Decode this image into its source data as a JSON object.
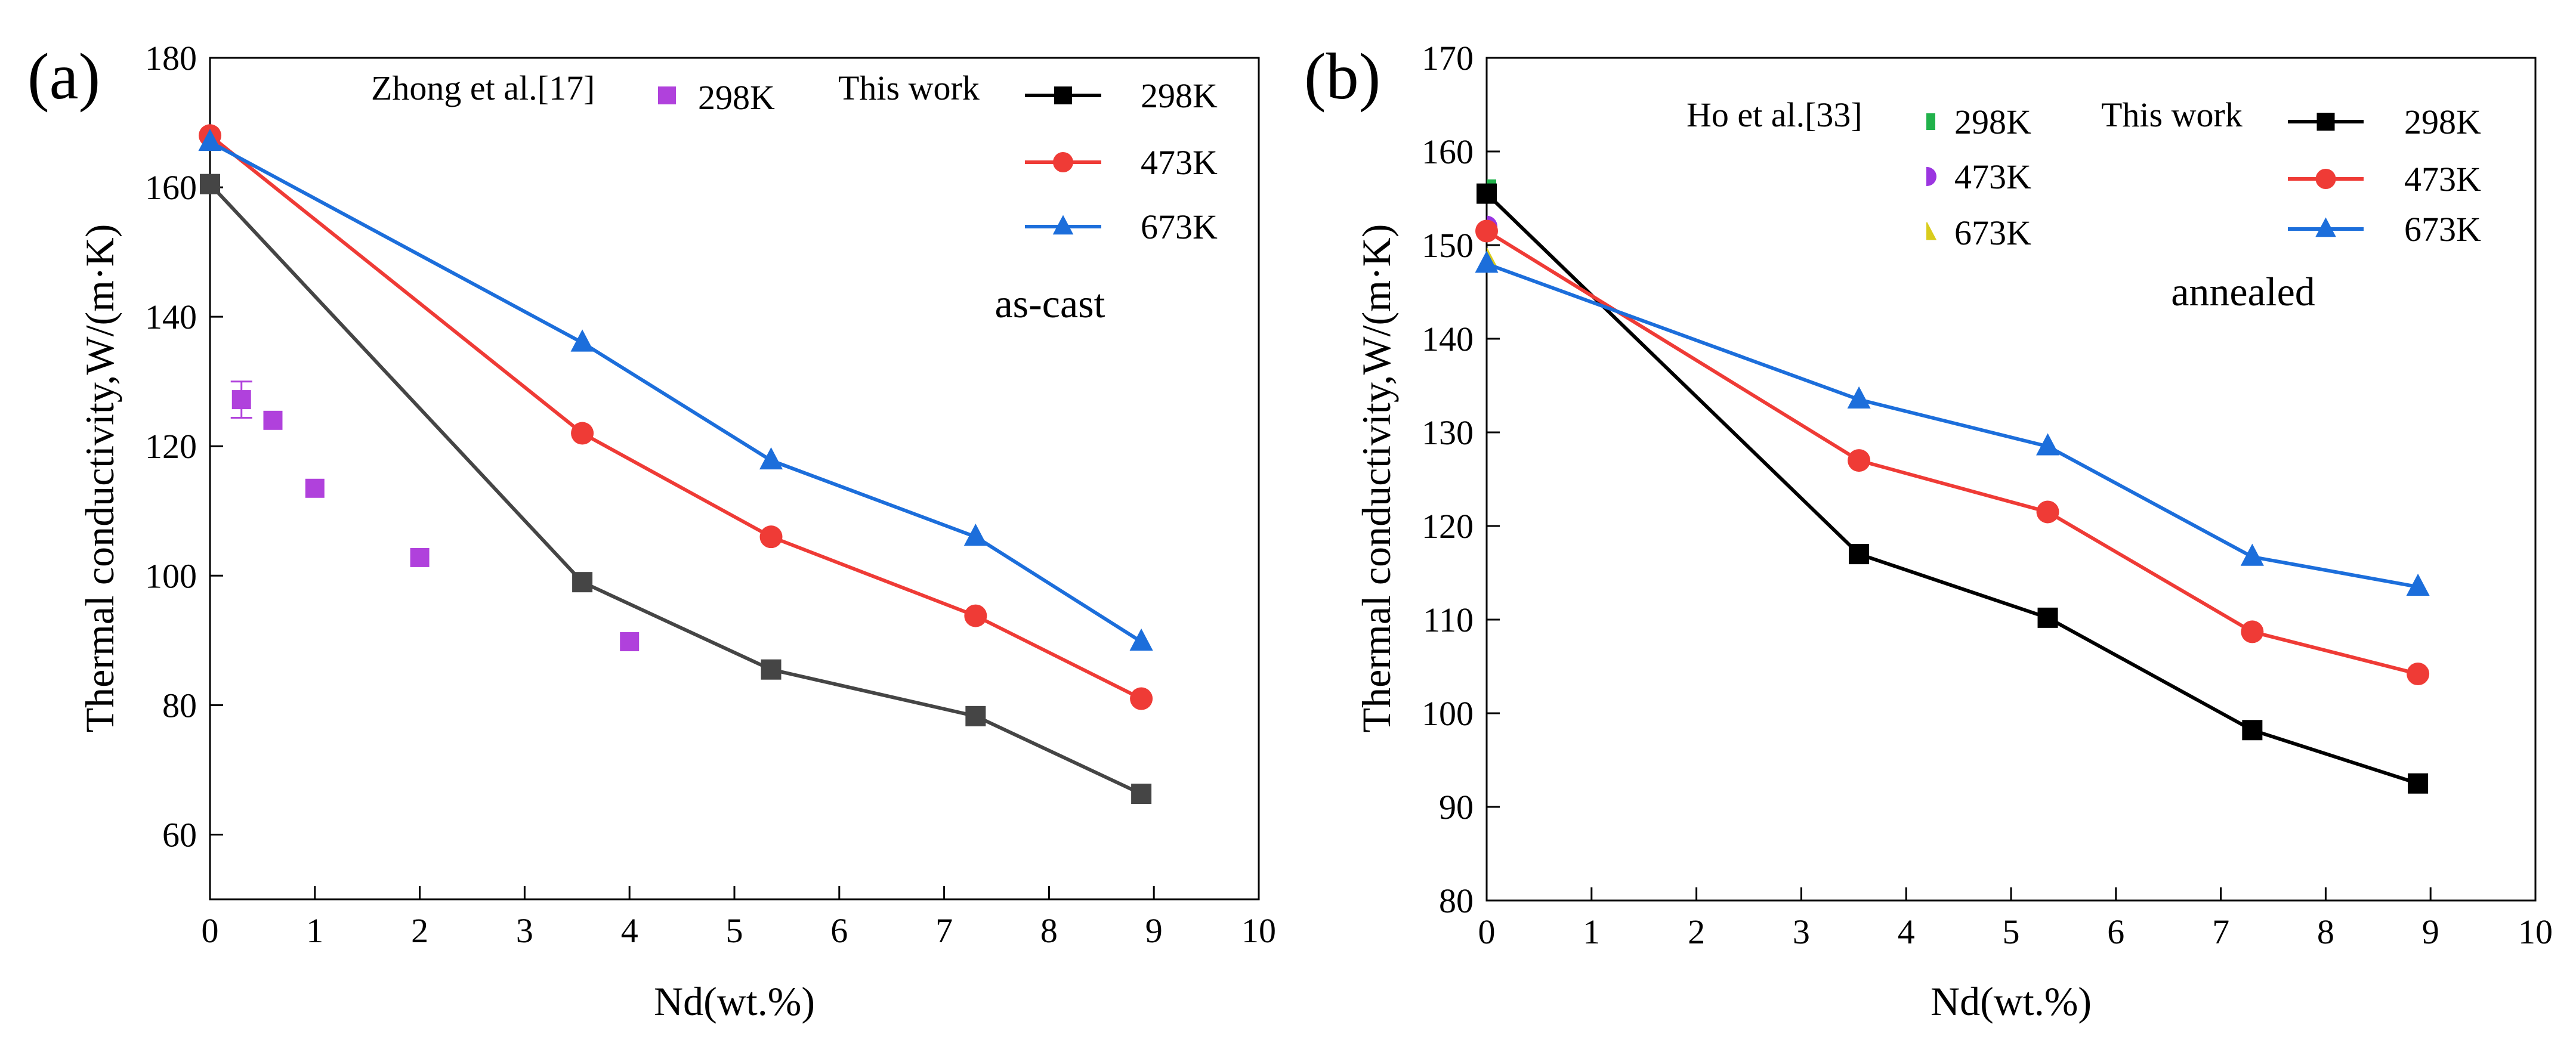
{
  "chart_data": [
    {
      "type": "line",
      "panel_label": "(a)",
      "xlabel": "Nd(wt.%)",
      "ylabel": "Thermal conductivity,W/(m·K)",
      "xlim": [
        0,
        10
      ],
      "ylim": [
        50,
        180
      ],
      "xticks": [
        "0",
        "1",
        "2",
        "3",
        "4",
        "5",
        "6",
        "7",
        "8",
        "9",
        "10"
      ],
      "yticks": [
        "60",
        "80",
        "100",
        "120",
        "140",
        "160",
        "180"
      ],
      "annotation": "as-cast",
      "legend_this_work": "This work",
      "legend_ref": "Zhong et al.[17]",
      "series": [
        {
          "name": "298K",
          "color": "#454545",
          "legend_color": "#000000",
          "marker": "square",
          "x": [
            0,
            3.55,
            5.35,
            7.3,
            8.88
          ],
          "y": [
            160.5,
            99,
            85.5,
            78.3,
            66.3
          ]
        },
        {
          "name": "473K",
          "color": "#ef3b36",
          "marker": "circle",
          "x": [
            0,
            3.55,
            5.35,
            7.3,
            8.88
          ],
          "y": [
            168,
            122,
            106,
            93.8,
            81
          ]
        },
        {
          "name": "673K",
          "color": "#1c6edb",
          "marker": "triangle",
          "x": [
            0,
            3.55,
            5.35,
            7.3,
            8.88
          ],
          "y": [
            167,
            136,
            117.8,
            106,
            89.8
          ]
        }
      ],
      "reference_series": [
        {
          "name": "298K",
          "color": "#b041dc",
          "marker": "square",
          "x": [
            0.3,
            0.6,
            1,
            2,
            4
          ],
          "y": [
            127.2,
            124,
            113.5,
            102.8,
            89.8
          ],
          "error_first": 2.8
        }
      ]
    },
    {
      "type": "line",
      "panel_label": "(b)",
      "xlabel": "Nd(wt.%)",
      "ylabel": "Thermal conductivity,W/(m·K)",
      "xlim": [
        0,
        10
      ],
      "ylim": [
        80,
        170
      ],
      "xticks": [
        "0",
        "1",
        "2",
        "3",
        "4",
        "5",
        "6",
        "7",
        "8",
        "9",
        "10"
      ],
      "yticks": [
        "80",
        "90",
        "100",
        "110",
        "120",
        "130",
        "140",
        "150",
        "160",
        "170"
      ],
      "annotation": "annealed",
      "legend_this_work": "This work",
      "legend_ref": "Ho et al.[33]",
      "series": [
        {
          "name": "298K",
          "color": "#000000",
          "marker": "square",
          "x": [
            0,
            3.55,
            5.35,
            7.3,
            8.88
          ],
          "y": [
            155.5,
            117,
            110.2,
            98.2,
            92.5
          ]
        },
        {
          "name": "473K",
          "color": "#ef3b36",
          "marker": "circle",
          "x": [
            0,
            3.55,
            5.35,
            7.3,
            8.88
          ],
          "y": [
            151.5,
            127,
            121.5,
            108.7,
            104.2
          ]
        },
        {
          "name": "673K",
          "color": "#1c6edb",
          "marker": "triangle",
          "x": [
            0,
            3.55,
            5.35,
            7.3,
            8.88
          ],
          "y": [
            148,
            133.5,
            128.5,
            116.7,
            113.5
          ]
        }
      ],
      "reference_series": [
        {
          "name": "298K",
          "color": "#21b24b",
          "marker": "square",
          "x": [
            0
          ],
          "y": [
            156
          ]
        },
        {
          "name": "473K",
          "color": "#9b35e0",
          "marker": "circle",
          "x": [
            0
          ],
          "y": [
            152
          ]
        },
        {
          "name": "673K",
          "color": "#d9cc1c",
          "marker": "triangle",
          "x": [
            0
          ],
          "y": [
            148.5
          ]
        }
      ]
    }
  ]
}
